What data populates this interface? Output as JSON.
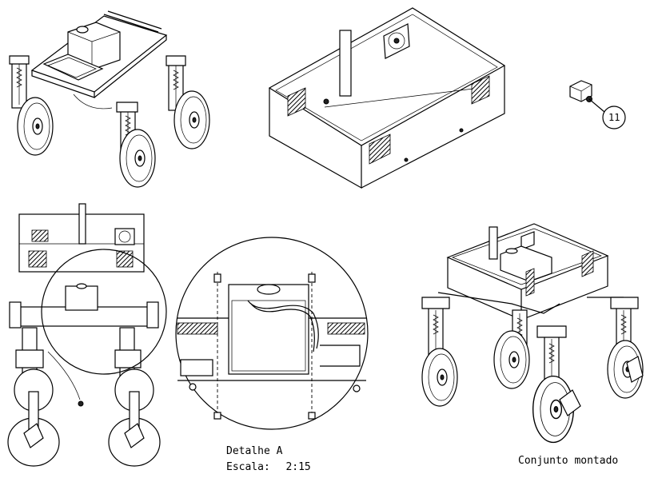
{
  "callout": {
    "number": "11"
  },
  "detail": {
    "title": "Detalhe A",
    "scale_label": "Escala:",
    "scale_value": "2:15"
  },
  "assembly": {
    "caption": "Conjunto montado"
  },
  "colors": {
    "line": "#000000",
    "background": "#ffffff"
  }
}
